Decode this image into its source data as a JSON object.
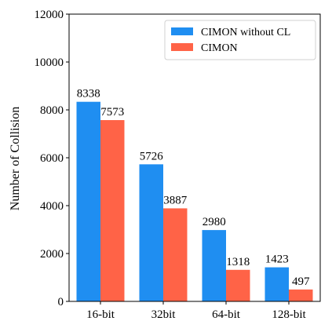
{
  "chart_data": {
    "type": "bar",
    "categories": [
      "16-bit",
      "32bit",
      "64-bit",
      "128-bit"
    ],
    "series": [
      {
        "name": "CIMON without CL",
        "color": "#1f8ef1",
        "values": [
          8338,
          5726,
          2980,
          1423
        ]
      },
      {
        "name": "CIMON",
        "color": "#ff6347",
        "values": [
          7573,
          3887,
          1318,
          497
        ]
      }
    ],
    "title": "",
    "xlabel": "",
    "ylabel": "Number of Collision",
    "ylim": [
      0,
      12000
    ],
    "yticks": [
      0,
      2000,
      4000,
      6000,
      8000,
      10000,
      12000
    ],
    "legend_position": "top-right",
    "grid": false
  }
}
